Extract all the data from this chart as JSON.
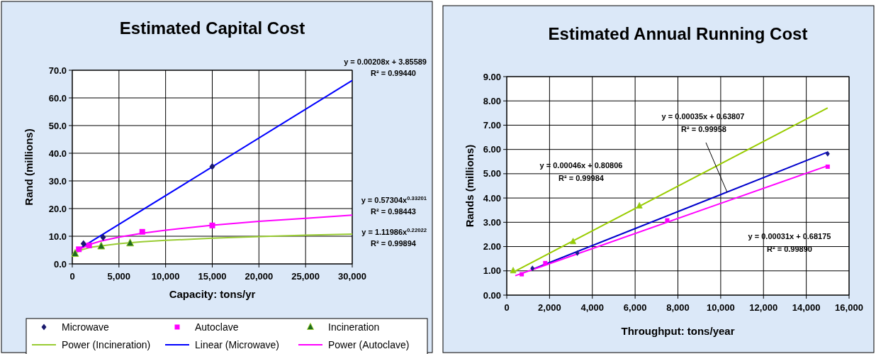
{
  "chart_data": [
    {
      "type": "scatter",
      "title": "Estimated Capital Cost",
      "xlabel": "Capacity: tons/yr",
      "ylabel": "Rand (millions)",
      "xlim": [
        0,
        30000
      ],
      "ylim": [
        0,
        70
      ],
      "xticks": [
        0,
        {
          "value": 5000,
          "label": "5,000"
        },
        {
          "value": 10000,
          "label": "10,000"
        },
        {
          "value": 15000,
          "label": "15,000"
        },
        {
          "value": 20000,
          "label": "20,000"
        },
        {
          "value": 25000,
          "label": "25,000"
        },
        {
          "value": 30000,
          "label": "30,000"
        }
      ],
      "yticks": [
        {
          "value": 0,
          "label": "0.0"
        },
        {
          "value": 10,
          "label": "10.0"
        },
        {
          "value": 20,
          "label": "20.0"
        },
        {
          "value": 30,
          "label": "30.0"
        },
        {
          "value": 40,
          "label": "40.0"
        },
        {
          "value": 50,
          "label": "50.0"
        },
        {
          "value": 60,
          "label": "60.0"
        },
        {
          "value": 70,
          "label": "70.0"
        }
      ],
      "grid": true,
      "legend": "bottom",
      "series": [
        {
          "name": "Microwave",
          "marker": "diamond",
          "color": "#1a1a6e",
          "x": [
            1200,
            3300,
            15000
          ],
          "values": [
            7.3,
            9.6,
            35.2
          ]
        },
        {
          "name": "Autoclave",
          "marker": "square",
          "color": "#ff00ff",
          "x": [
            700,
            1800,
            7500,
            15000
          ],
          "values": [
            5.3,
            6.7,
            11.6,
            13.9
          ]
        },
        {
          "name": "Incineration",
          "marker": "triangle",
          "color": "#1f6b1f",
          "x": [
            300,
            3100,
            6200
          ],
          "values": [
            3.7,
            6.4,
            7.5
          ]
        },
        {
          "name": "Power (Incineration)",
          "type": "line",
          "marker": "none",
          "color": "#99cc33",
          "x": [
            300,
            1000,
            2000,
            3000,
            5000,
            7500,
            10000,
            15000,
            20000,
            25000,
            30000
          ],
          "values": [
            3.9,
            5.1,
            6.0,
            6.5,
            7.3,
            8.0,
            8.5,
            9.3,
            9.9,
            10.4,
            10.8
          ]
        },
        {
          "name": "Linear (Microwave)",
          "type": "line",
          "marker": "none",
          "color": "#0000ff",
          "x": [
            300,
            30000
          ],
          "values": [
            4.5,
            66.3
          ]
        },
        {
          "name": "Power (Autoclave)",
          "type": "line",
          "marker": "none",
          "color": "#ff00ff",
          "x": [
            500,
            1000,
            2000,
            3000,
            5000,
            7500,
            10000,
            15000,
            20000,
            25000,
            30000
          ],
          "values": [
            4.5,
            5.7,
            7.2,
            8.2,
            9.7,
            11.1,
            12.2,
            14.0,
            15.4,
            16.5,
            17.6
          ]
        }
      ],
      "annotations": [
        "y = 0.00208x + 3.85589",
        "R² = 0.99440",
        "y = 0.57304x$^{0.33201}$",
        "R² = 0.98443",
        "y = 1.11986x$^{0.22022}$",
        "R² = 0.99894"
      ]
    },
    {
      "type": "scatter",
      "title": "Estimated Annual Running Cost",
      "xlabel": "Throughput: tons/year",
      "ylabel": "Rands (millions)",
      "xlim": [
        0,
        16000
      ],
      "ylim": [
        0,
        9
      ],
      "xticks": [
        0,
        {
          "value": 2000,
          "label": "2,000"
        },
        {
          "value": 4000,
          "label": "4,000"
        },
        {
          "value": 6000,
          "label": "6,000"
        },
        {
          "value": 8000,
          "label": "8,000"
        },
        {
          "value": 10000,
          "label": "10,000"
        },
        {
          "value": 12000,
          "label": "12,000"
        },
        {
          "value": 14000,
          "label": "14,000"
        },
        {
          "value": 16000,
          "label": "16,000"
        }
      ],
      "yticks": [
        {
          "value": 0,
          "label": "0.00"
        },
        {
          "value": 1,
          "label": "1.00"
        },
        {
          "value": 2,
          "label": "2.00"
        },
        {
          "value": 3,
          "label": "3.00"
        },
        {
          "value": 4,
          "label": "4.00"
        },
        {
          "value": 5,
          "label": "5.00"
        },
        {
          "value": 6,
          "label": "6.00"
        },
        {
          "value": 7,
          "label": "7.00"
        },
        {
          "value": 8,
          "label": "8.00"
        },
        {
          "value": 9,
          "label": "9.00"
        }
      ],
      "grid": true,
      "series": [
        {
          "marker": "diamond",
          "color": "#1a1a8e",
          "x": [
            1200,
            3300,
            15000
          ],
          "values": [
            1.1,
            1.73,
            5.82
          ]
        },
        {
          "marker": "square",
          "color": "#ff00ff",
          "x": [
            700,
            1800,
            7500,
            15000
          ],
          "values": [
            0.86,
            1.32,
            3.08,
            5.29
          ]
        },
        {
          "marker": "triangle",
          "color": "#99cc00",
          "x": [
            300,
            3100,
            6200
          ],
          "values": [
            1.0,
            2.2,
            3.67
          ]
        },
        {
          "type": "line",
          "marker": "none",
          "color": "#99cc00",
          "x": [
            400,
            15000
          ],
          "values": [
            0.99,
            7.71
          ]
        },
        {
          "type": "line",
          "marker": "none",
          "color": "#0000cc",
          "x": [
            1200,
            15000
          ],
          "values": [
            1.06,
            5.89
          ]
        },
        {
          "type": "line",
          "marker": "none",
          "color": "#ff00ff",
          "x": [
            400,
            15000
          ],
          "values": [
            0.8,
            5.33
          ]
        }
      ],
      "annotations": [
        "y = 0.00035x + 0.63807",
        {
          "text": "R² = 0.99958",
          "x": 10300,
          "y": 4.24
        },
        "y = 0.00046x + 0.80806",
        "R² = 0.99984",
        "y = 0.00031x + 0.68175",
        "R² = 0.99890"
      ]
    }
  ]
}
